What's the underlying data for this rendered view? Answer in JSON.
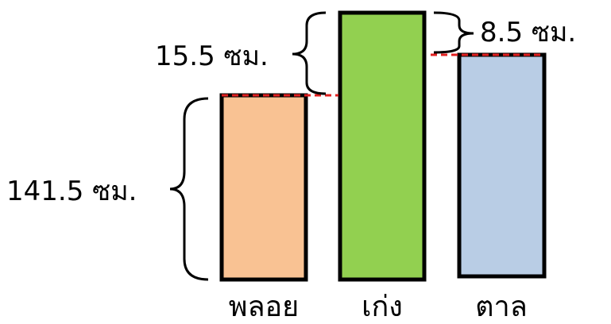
{
  "colors": {
    "bar_ploy": "#F9C293",
    "bar_keng": "#92D050",
    "bar_tan": "#B9CDE5",
    "outline": "#000000",
    "guide": "#E02020"
  },
  "bars": [
    {
      "name": "พลอย"
    },
    {
      "name": "เก่ง"
    },
    {
      "name": "ตาล"
    }
  ],
  "annotations": {
    "ploy_height": "141.5 ซม.",
    "keng_over_ploy": "15.5 ซม.",
    "keng_over_tan": "8.5 ซม."
  }
}
